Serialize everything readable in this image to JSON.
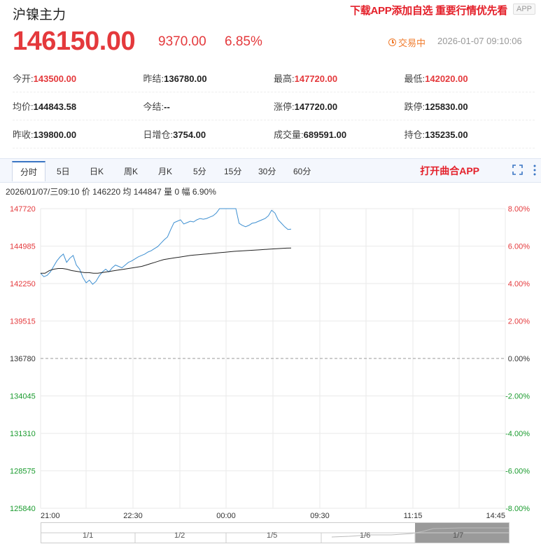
{
  "header": {
    "title": "沪镍主力",
    "promo": "下载APP添加自选 重要行情优先看",
    "app_badge": "APP"
  },
  "quote": {
    "price": "146150.00",
    "change": "9370.00",
    "change_pct": "6.85%",
    "status": "交易中",
    "timestamp": "2026-01-07 09:10:06"
  },
  "stats": [
    [
      {
        "label": "今开:",
        "value": "143500.00",
        "red": true
      },
      {
        "label": "昨结:",
        "value": "136780.00",
        "red": false
      },
      {
        "label": "最高:",
        "value": "147720.00",
        "red": true
      },
      {
        "label": "最低:",
        "value": "142020.00",
        "red": true
      }
    ],
    [
      {
        "label": "均价:",
        "value": "144843.58",
        "red": false
      },
      {
        "label": "今结:",
        "value": "--",
        "red": false
      },
      {
        "label": "涨停:",
        "value": "147720.00",
        "red": false
      },
      {
        "label": "跌停:",
        "value": "125830.00",
        "red": false
      }
    ],
    [
      {
        "label": "昨收:",
        "value": "139800.00",
        "red": false
      },
      {
        "label": "日增仓:",
        "value": "3754.00",
        "red": false
      },
      {
        "label": "成交量:",
        "value": "689591.00",
        "red": false
      },
      {
        "label": "持仓:",
        "value": "135235.00",
        "red": false
      }
    ]
  ],
  "tabs": [
    "分时",
    "5日",
    "日K",
    "周K",
    "月K",
    "5分",
    "15分",
    "30分",
    "60分"
  ],
  "active_tab": "分时",
  "open_app": "打开曲合APP",
  "chart_info": "2026/01/07/三09:10  价 146220  均 144847  量 0  幅 6.90%",
  "chart_data": {
    "type": "line",
    "y_left_ticks": [
      "147720",
      "144985",
      "142250",
      "139515",
      "136780",
      "134045",
      "131310",
      "128575",
      "125840"
    ],
    "y_right_ticks": [
      "8.00%",
      "6.00%",
      "4.00%",
      "2.00%",
      "0.00%",
      "-2.00%",
      "-4.00%",
      "-6.00%",
      "-8.00%"
    ],
    "x_ticks": [
      "21:00",
      "22:30",
      "00:00",
      "09:30",
      "11:15",
      "14:45"
    ],
    "ylim": [
      125840,
      147720
    ],
    "baseline": 136780,
    "series": [
      {
        "color": "#3d8fd1",
        "values": [
          143000,
          142750,
          142850,
          143100,
          143500,
          143900,
          144200,
          144400,
          143800,
          144100,
          144300,
          143600,
          143300,
          142700,
          142300,
          142500,
          142200,
          142400,
          142800,
          143100,
          143300,
          143100,
          143400,
          143600,
          143500,
          143400,
          143600,
          143800,
          143900,
          144050,
          144200,
          144300,
          144400,
          144550,
          144650,
          144800,
          144950,
          145200,
          145450,
          145650,
          146200,
          146700,
          146800,
          146900,
          146600,
          146700,
          146800,
          146750,
          146900,
          147000,
          146950,
          147000,
          147100,
          147200,
          147400,
          147720,
          147720,
          147720,
          147720,
          147720,
          147720,
          146650,
          146500,
          146400,
          146500,
          146650,
          146700,
          146800,
          146900,
          147000,
          147200,
          147600,
          147400,
          146900,
          146650,
          146400,
          146200,
          146220
        ]
      },
      {
        "color": "#222222",
        "values": [
          143000,
          143000,
          143200,
          143300,
          143350,
          143350,
          143300,
          143200,
          143150,
          143100,
          143050,
          143050,
          143000,
          143000,
          143050,
          143100,
          143150,
          143200,
          143250,
          143300,
          143350,
          143400,
          143450,
          143500,
          143600,
          143700,
          143800,
          143900,
          144000,
          144050,
          144100,
          144150,
          144200,
          144250,
          144300,
          144330,
          144360,
          144390,
          144420,
          144450,
          144480,
          144510,
          144540,
          144570,
          144600,
          144620,
          144640,
          144660,
          144680,
          144700,
          144720,
          144740,
          144760,
          144780,
          144800,
          144820,
          144835,
          144843
        ]
      }
    ]
  },
  "navigator": [
    "1/1",
    "1/2",
    "1/5",
    "1/6",
    "1/7"
  ]
}
